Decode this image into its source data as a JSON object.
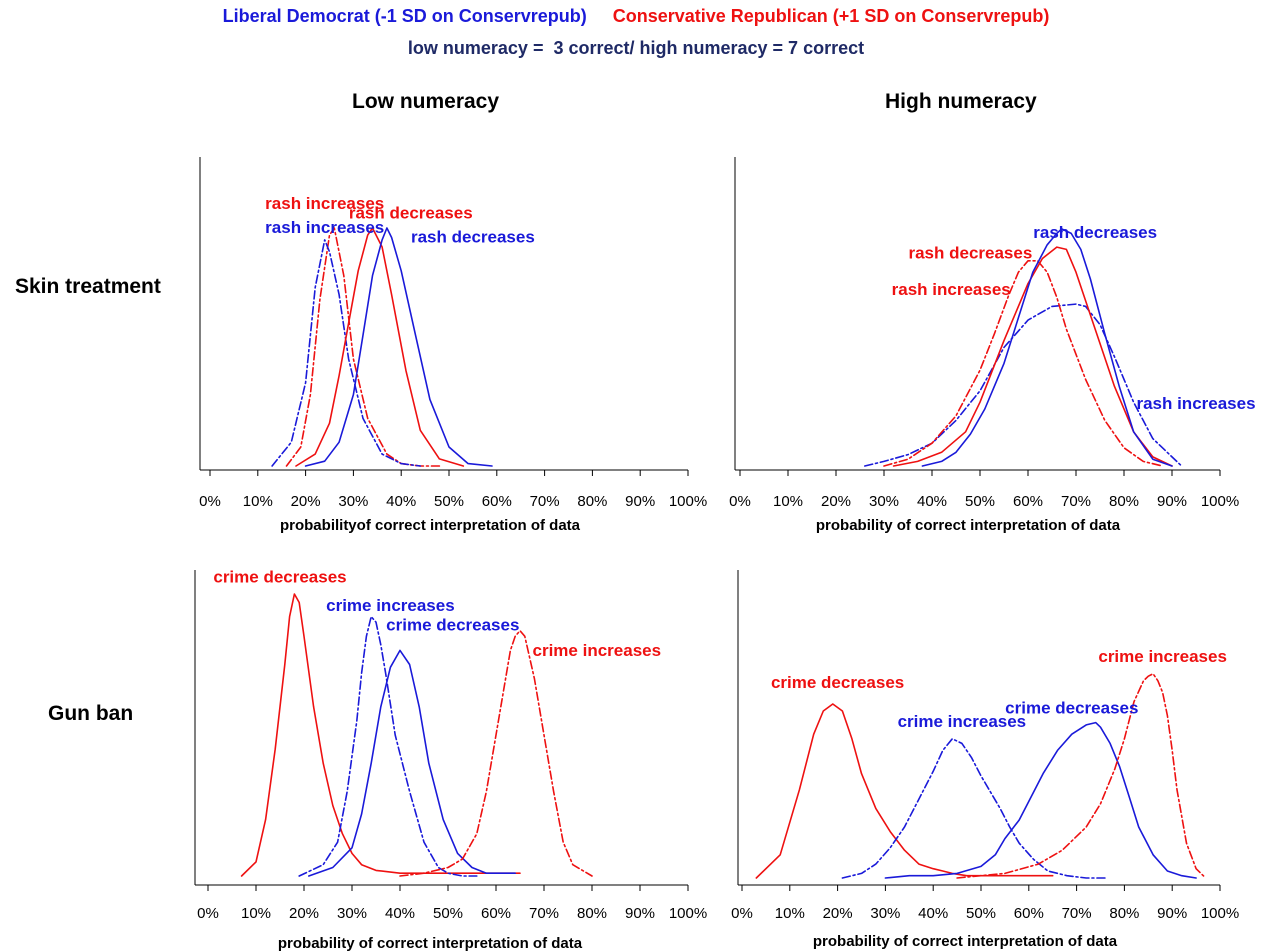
{
  "header": {
    "legend_liberal": "Liberal Democrat (-1 SD on Conservrepub)",
    "legend_conservative": "Conservative Republican (+1 SD on Conservrepub)",
    "subtitle": "low numeracy =  3 correct/ high numeracy = 7 correct",
    "col_left": "Low numeracy",
    "col_right": "High numeracy",
    "row_top": "Skin treatment",
    "row_bottom": "Gun ban"
  },
  "colors": {
    "liberal": "#1a1ad9",
    "conservative": "#ee1111",
    "subtitle": "#1f2a66"
  },
  "chart_data": [
    {
      "type": "line",
      "id": "skin-low",
      "xlabel": "probabilityof correct interpretation of data",
      "xticks": [
        "0%",
        "10%",
        "20%",
        "30%",
        "40%",
        "50%",
        "60%",
        "70%",
        "80%",
        "90%",
        "100%"
      ],
      "xlim": [
        0,
        100
      ],
      "series": [
        {
          "party": "conservative",
          "style": "dashdot",
          "x": [
            16,
            19,
            21,
            23,
            25,
            26,
            28,
            30,
            33,
            37,
            40,
            44,
            48
          ],
          "y": [
            0,
            0.08,
            0.3,
            0.7,
            0.97,
            1,
            0.8,
            0.45,
            0.2,
            0.05,
            0.01,
            0,
            0
          ]
        },
        {
          "party": "liberal",
          "style": "dashdot",
          "x": [
            13,
            17,
            20,
            22,
            24,
            25,
            27,
            29,
            32,
            36,
            40,
            44
          ],
          "y": [
            0,
            0.1,
            0.35,
            0.75,
            0.95,
            0.9,
            0.72,
            0.45,
            0.2,
            0.05,
            0.01,
            0
          ]
        },
        {
          "party": "conservative",
          "style": "solid",
          "x": [
            18,
            22,
            25,
            27,
            29,
            31,
            33,
            34,
            36,
            38,
            41,
            44,
            48,
            53
          ],
          "y": [
            0,
            0.05,
            0.18,
            0.38,
            0.6,
            0.82,
            0.97,
            1,
            0.92,
            0.72,
            0.4,
            0.15,
            0.03,
            0
          ]
        },
        {
          "party": "liberal",
          "style": "solid",
          "x": [
            20,
            24,
            27,
            30,
            32,
            34,
            36,
            37,
            38,
            40,
            43,
            46,
            50,
            54,
            59
          ],
          "y": [
            0,
            0.02,
            0.1,
            0.3,
            0.55,
            0.8,
            0.95,
            1,
            0.96,
            0.82,
            0.55,
            0.28,
            0.08,
            0.01,
            0
          ]
        }
      ],
      "labels": [
        {
          "text": "rash increases",
          "party": "conservative",
          "x": 24,
          "y": 1.08
        },
        {
          "text": "rash increases",
          "party": "liberal",
          "x": 24,
          "y": 0.98
        },
        {
          "text": "rash decreases",
          "party": "conservative",
          "x": 42,
          "y": 1.04
        },
        {
          "text": "rash decreases",
          "party": "liberal",
          "x": 55,
          "y": 0.94
        }
      ]
    },
    {
      "type": "line",
      "id": "skin-high",
      "xlabel": "probability of correct interpretation of data",
      "xticks": [
        "0%",
        "10%",
        "20%",
        "30%",
        "40%",
        "50%",
        "60%",
        "70%",
        "80%",
        "90%",
        "100%"
      ],
      "xlim": [
        0,
        100
      ],
      "series": [
        {
          "party": "liberal",
          "style": "dashdot",
          "x": [
            26,
            30,
            35,
            40,
            45,
            50,
            55,
            60,
            65,
            70,
            72,
            75,
            78,
            82,
            86,
            92
          ],
          "y": [
            0,
            0.02,
            0.05,
            0.1,
            0.2,
            0.33,
            0.52,
            0.64,
            0.7,
            0.71,
            0.7,
            0.62,
            0.48,
            0.28,
            0.12,
            0
          ]
        },
        {
          "party": "conservative",
          "style": "dashdot",
          "x": [
            30,
            35,
            40,
            45,
            50,
            53,
            56,
            58,
            60,
            62,
            64,
            66,
            68,
            72,
            76,
            80,
            84,
            88
          ],
          "y": [
            0,
            0.03,
            0.1,
            0.22,
            0.42,
            0.58,
            0.75,
            0.85,
            0.9,
            0.9,
            0.85,
            0.74,
            0.6,
            0.38,
            0.2,
            0.08,
            0.02,
            0
          ]
        },
        {
          "party": "conservative",
          "style": "solid",
          "x": [
            32,
            37,
            42,
            47,
            50,
            55,
            60,
            63,
            66,
            68,
            70,
            74,
            78,
            82,
            86,
            90
          ],
          "y": [
            0,
            0.02,
            0.06,
            0.15,
            0.28,
            0.55,
            0.8,
            0.91,
            0.96,
            0.95,
            0.85,
            0.6,
            0.35,
            0.15,
            0.04,
            0
          ]
        },
        {
          "party": "liberal",
          "style": "solid",
          "x": [
            38,
            42,
            45,
            48,
            51,
            55,
            58,
            61,
            64,
            66,
            67,
            69,
            71,
            73,
            76,
            79,
            82,
            86,
            90
          ],
          "y": [
            0,
            0.02,
            0.06,
            0.14,
            0.25,
            0.45,
            0.65,
            0.85,
            0.97,
            1.02,
            1.04,
            1.02,
            0.95,
            0.82,
            0.58,
            0.35,
            0.15,
            0.03,
            0
          ]
        }
      ],
      "labels": [
        {
          "text": "rash decreases",
          "party": "liberal",
          "x": 74,
          "y": 1.0
        },
        {
          "text": "rash decreases",
          "party": "conservative",
          "x": 48,
          "y": 0.91
        },
        {
          "text": "rash increases",
          "party": "conservative",
          "x": 44,
          "y": 0.75
        },
        {
          "text": "rash increases",
          "party": "liberal",
          "x": 95,
          "y": 0.25
        }
      ]
    },
    {
      "type": "line",
      "id": "gun-low",
      "xlabel": "probability of correct interpretation of data",
      "xticks": [
        "0%",
        "10%",
        "20%",
        "30%",
        "40%",
        "50%",
        "60%",
        "70%",
        "80%",
        "90%",
        "100%"
      ],
      "xlim": [
        0,
        100
      ],
      "series": [
        {
          "party": "conservative",
          "style": "solid",
          "x": [
            7,
            10,
            12,
            14,
            16,
            17,
            18,
            19,
            20,
            22,
            24,
            26,
            28,
            30,
            32,
            35,
            40,
            50,
            60,
            65
          ],
          "y": [
            0,
            0.05,
            0.2,
            0.45,
            0.75,
            0.92,
            1,
            0.97,
            0.85,
            0.6,
            0.4,
            0.25,
            0.15,
            0.08,
            0.04,
            0.02,
            0.01,
            0.01,
            0.01,
            0.01
          ]
        },
        {
          "party": "liberal",
          "style": "dashdot",
          "x": [
            19,
            24,
            27,
            29,
            31,
            32,
            33,
            34,
            35,
            36,
            37,
            39,
            42,
            45,
            48,
            50,
            53,
            56
          ],
          "y": [
            0,
            0.04,
            0.12,
            0.3,
            0.55,
            0.72,
            0.85,
            0.92,
            0.9,
            0.82,
            0.72,
            0.5,
            0.3,
            0.12,
            0.03,
            0.01,
            0,
            0
          ]
        },
        {
          "party": "liberal",
          "style": "solid",
          "x": [
            21,
            26,
            30,
            32,
            34,
            36,
            38,
            40,
            42,
            44,
            46,
            49,
            52,
            55,
            58,
            64
          ],
          "y": [
            0,
            0.03,
            0.1,
            0.22,
            0.4,
            0.6,
            0.74,
            0.8,
            0.75,
            0.6,
            0.4,
            0.2,
            0.08,
            0.03,
            0.01,
            0.01
          ]
        },
        {
          "party": "conservative",
          "style": "dashdot",
          "x": [
            40,
            45,
            50,
            53,
            56,
            58,
            60,
            62,
            63,
            64,
            65,
            66,
            68,
            70,
            72,
            74,
            76,
            80
          ],
          "y": [
            0,
            0.01,
            0.03,
            0.06,
            0.15,
            0.3,
            0.5,
            0.7,
            0.8,
            0.85,
            0.87,
            0.85,
            0.7,
            0.5,
            0.3,
            0.12,
            0.04,
            0
          ]
        }
      ],
      "labels": [
        {
          "text": "crime decreases",
          "party": "conservative",
          "x": 15,
          "y": 1.04
        },
        {
          "text": "crime increases",
          "party": "liberal",
          "x": 38,
          "y": 0.94
        },
        {
          "text": "crime decreases",
          "party": "liberal",
          "x": 51,
          "y": 0.87
        },
        {
          "text": "crime increases",
          "party": "conservative",
          "x": 81,
          "y": 0.78
        }
      ]
    },
    {
      "type": "line",
      "id": "gun-high",
      "xlabel": "probability of correct interpretation of data",
      "xticks": [
        "0%",
        "10%",
        "20%",
        "30%",
        "40%",
        "50%",
        "60%",
        "70%",
        "80%",
        "90%",
        "100%"
      ],
      "xlim": [
        0,
        100
      ],
      "series": [
        {
          "party": "conservative",
          "style": "solid",
          "x": [
            3,
            8,
            12,
            15,
            17,
            19,
            21,
            23,
            25,
            28,
            31,
            34,
            37,
            40,
            42,
            44,
            47,
            50,
            55,
            60,
            65
          ],
          "y": [
            0,
            0.1,
            0.38,
            0.62,
            0.72,
            0.75,
            0.72,
            0.6,
            0.45,
            0.3,
            0.2,
            0.12,
            0.06,
            0.04,
            0.03,
            0.02,
            0.01,
            0.01,
            0.01,
            0.01,
            0.01
          ]
        },
        {
          "party": "liberal",
          "style": "dashdot",
          "x": [
            21,
            25,
            28,
            31,
            34,
            37,
            40,
            42,
            44,
            46,
            48,
            50,
            52,
            54,
            56,
            58,
            61,
            64,
            68,
            72,
            76
          ],
          "y": [
            0,
            0.02,
            0.06,
            0.13,
            0.22,
            0.34,
            0.46,
            0.55,
            0.6,
            0.58,
            0.52,
            0.44,
            0.37,
            0.3,
            0.22,
            0.15,
            0.08,
            0.03,
            0.01,
            0,
            0
          ]
        },
        {
          "party": "liberal",
          "style": "solid",
          "x": [
            30,
            35,
            40,
            45,
            50,
            53,
            55,
            58,
            60,
            63,
            66,
            69,
            72,
            74,
            75,
            77,
            79,
            81,
            83,
            86,
            89,
            92,
            95
          ],
          "y": [
            0,
            0.01,
            0.01,
            0.02,
            0.05,
            0.1,
            0.17,
            0.25,
            0.33,
            0.45,
            0.55,
            0.62,
            0.66,
            0.67,
            0.65,
            0.58,
            0.48,
            0.35,
            0.22,
            0.1,
            0.03,
            0.01,
            0
          ]
        },
        {
          "party": "conservative",
          "style": "dashdot",
          "x": [
            45,
            55,
            62,
            67,
            72,
            75,
            78,
            80,
            82,
            84,
            85,
            86,
            87,
            88,
            89,
            90,
            91,
            93,
            95,
            97
          ],
          "y": [
            0,
            0.02,
            0.06,
            0.12,
            0.22,
            0.32,
            0.47,
            0.6,
            0.76,
            0.85,
            0.87,
            0.88,
            0.85,
            0.8,
            0.7,
            0.55,
            0.38,
            0.15,
            0.04,
            0
          ]
        }
      ],
      "labels": [
        {
          "text": "crime increases",
          "party": "conservative",
          "x": 88,
          "y": 0.93
        },
        {
          "text": "crime decreases",
          "party": "conservative",
          "x": 20,
          "y": 0.82
        },
        {
          "text": "crime decreases",
          "party": "liberal",
          "x": 69,
          "y": 0.71
        },
        {
          "text": "crime increases",
          "party": "liberal",
          "x": 46,
          "y": 0.65
        }
      ]
    }
  ]
}
